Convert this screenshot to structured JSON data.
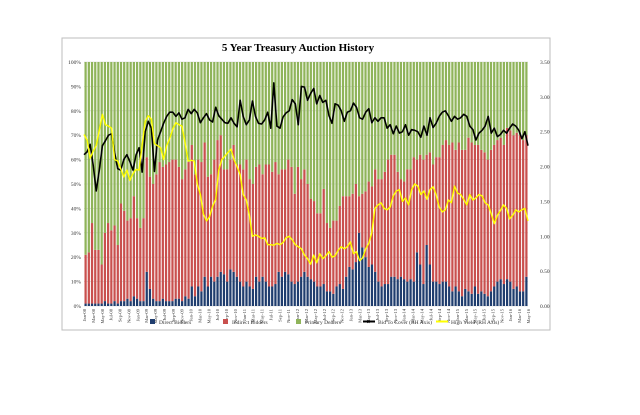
{
  "chart_data": {
    "type": "bar",
    "title": "5 Year Treasury Auction History",
    "left_axis": {
      "ylim": [
        0,
        100
      ],
      "ticks": [
        "0%",
        "10%",
        "20%",
        "30%",
        "40%",
        "50%",
        "60%",
        "70%",
        "80%",
        "90%",
        "100%"
      ]
    },
    "right_axis": {
      "ylim": [
        0,
        3.5
      ],
      "ticks": [
        "0.00",
        "0.50",
        "1.00",
        "1.50",
        "2.00",
        "2.50",
        "3.00",
        "3.50"
      ]
    },
    "grid": true,
    "legend_position": "bottom",
    "x_tick_labels": [
      "Jan-08",
      "Mar-08",
      "May-08",
      "Jul-08",
      "Sep-08",
      "Nov-08",
      "Jan-09",
      "Mar-09",
      "May-09",
      "Jul-09",
      "Sep-09",
      "Nov-09",
      "Jan-10",
      "Mar-10",
      "May-10",
      "Jul-10",
      "Sep-10",
      "Nov-10",
      "Jan-11",
      "Mar-11",
      "May-11",
      "Jul-11",
      "Sep-11",
      "Nov-11",
      "Jan-12",
      "Mar-12",
      "May-12",
      "Jul-12",
      "Sep-12",
      "Nov-12",
      "Jan-13",
      "Mar-13",
      "May-13",
      "Jul-13",
      "Sep-13",
      "Nov-13",
      "Jan-14",
      "Mar-14",
      "May-14",
      "Jul-14",
      "Sep-14",
      "Nov-14",
      "Jan-15",
      "Mar-15",
      "May-15",
      "Jul-15",
      "Sep-15",
      "Nov-15",
      "Jan-16",
      "Mar-16",
      "May-16"
    ],
    "bar_series": [
      {
        "name": "Direct Bidders",
        "color": "#1f3d6e",
        "values": [
          1,
          1,
          1,
          1,
          1,
          1,
          2,
          1,
          1,
          2,
          1,
          2,
          2,
          3,
          2,
          4,
          3,
          2,
          2,
          14,
          7,
          3,
          2,
          2,
          3,
          2,
          2,
          2,
          3,
          3,
          2,
          4,
          3,
          8,
          4,
          8,
          6,
          12,
          8,
          12,
          10,
          12,
          14,
          13,
          10,
          15,
          14,
          12,
          10,
          8,
          10,
          8,
          7,
          12,
          10,
          12,
          10,
          8,
          8,
          9,
          14,
          12,
          14,
          13,
          10,
          9,
          10,
          12,
          14,
          12,
          11,
          10,
          8,
          8,
          9,
          6,
          6,
          5,
          8,
          9,
          7,
          12,
          16,
          15,
          18,
          30,
          24,
          20,
          16,
          17,
          14,
          10,
          8,
          9,
          9,
          12,
          12,
          11,
          12,
          11,
          10,
          11,
          10,
          22,
          17,
          9,
          25,
          17,
          10,
          10,
          9,
          10,
          10,
          8,
          6,
          8,
          6,
          4,
          7,
          6,
          5,
          8,
          5,
          6,
          5,
          4,
          6,
          8,
          10,
          11,
          9,
          11,
          10,
          7,
          8,
          6,
          6,
          12
        ]
      },
      {
        "name": "Indirect Bidders",
        "color": "#c9504e",
        "values": [
          20,
          21,
          33,
          22,
          22,
          16,
          28,
          33,
          30,
          31,
          24,
          40,
          37,
          32,
          34,
          41,
          33,
          30,
          34,
          47,
          46,
          47,
          52,
          57,
          54,
          56,
          57,
          58,
          57,
          54,
          50,
          52,
          56,
          58,
          50,
          52,
          53,
          55,
          45,
          42,
          50,
          56,
          56,
          43,
          46,
          45,
          52,
          46,
          48,
          48,
          50,
          44,
          43,
          45,
          48,
          42,
          48,
          50,
          47,
          50,
          40,
          44,
          42,
          47,
          47,
          37,
          47,
          40,
          42,
          38,
          33,
          33,
          30,
          30,
          39,
          28,
          26,
          30,
          27,
          32,
          38,
          33,
          29,
          31,
          32,
          15,
          22,
          27,
          35,
          32,
          42,
          42,
          44,
          46,
          51,
          50,
          50,
          44,
          40,
          40,
          46,
          45,
          51,
          38,
          45,
          51,
          37,
          46,
          48,
          51,
          52,
          56,
          58,
          58,
          61,
          56,
          61,
          60,
          57,
          63,
          62,
          58,
          61,
          58,
          58,
          56,
          58,
          58,
          58,
          58,
          57,
          62,
          62,
          63,
          63,
          64,
          62,
          58
        ]
      },
      {
        "name": "Primary Dealers",
        "color": "#8fb45a",
        "values": [
          79,
          78,
          66,
          77,
          77,
          83,
          70,
          66,
          69,
          67,
          75,
          58,
          61,
          65,
          64,
          55,
          64,
          68,
          64,
          39,
          47,
          50,
          46,
          41,
          43,
          42,
          41,
          40,
          40,
          43,
          48,
          44,
          41,
          34,
          46,
          40,
          41,
          33,
          47,
          46,
          40,
          32,
          30,
          44,
          44,
          40,
          34,
          42,
          42,
          44,
          40,
          48,
          50,
          43,
          42,
          46,
          42,
          42,
          45,
          41,
          46,
          44,
          44,
          40,
          43,
          54,
          43,
          48,
          44,
          50,
          56,
          57,
          62,
          62,
          52,
          66,
          68,
          65,
          65,
          59,
          55,
          55,
          55,
          54,
          50,
          55,
          54,
          53,
          49,
          51,
          44,
          48,
          48,
          45,
          40,
          38,
          38,
          45,
          48,
          49,
          44,
          44,
          39,
          40,
          38,
          40,
          38,
          37,
          42,
          39,
          39,
          34,
          32,
          34,
          33,
          36,
          33,
          36,
          36,
          31,
          33,
          34,
          34,
          36,
          37,
          40,
          36,
          34,
          32,
          31,
          34,
          27,
          28,
          30,
          29,
          30,
          32,
          30
        ]
      }
    ],
    "line_series": [
      {
        "name": "Bid To Cover (RH Axis)",
        "color": "#000000",
        "axis": "right",
        "values": [
          2.17,
          2.21,
          2.32,
          2.02,
          1.65,
          1.95,
          2.3,
          2.37,
          2.45,
          2.47,
          2.2,
          1.97,
          1.95,
          2.1,
          2.17,
          2.07,
          1.95,
          2.17,
          2.27,
          1.92,
          2.5,
          2.65,
          2.55,
          1.93,
          2.38,
          2.5,
          2.62,
          2.72,
          2.78,
          2.78,
          2.72,
          2.77,
          2.68,
          2.7,
          2.82,
          2.76,
          2.82,
          2.77,
          2.63,
          2.7,
          2.76,
          2.67,
          2.64,
          2.85,
          2.73,
          2.68,
          2.63,
          2.62,
          2.7,
          2.62,
          2.57,
          2.95,
          2.72,
          2.6,
          2.67,
          2.94,
          2.72,
          2.62,
          2.61,
          2.67,
          2.78,
          2.55,
          3.2,
          2.58,
          2.55,
          2.71,
          2.77,
          2.8,
          2.96,
          2.9,
          2.6,
          3.15,
          3.14,
          2.95,
          3.05,
          3.12,
          2.9,
          3.02,
          2.92,
          2.95,
          2.73,
          2.62,
          2.9,
          2.88,
          2.8,
          2.65,
          2.78,
          2.8,
          2.91,
          2.85,
          2.7,
          2.68,
          2.78,
          2.83,
          2.63,
          2.7,
          2.65,
          2.7,
          2.7,
          2.55,
          2.6,
          2.47,
          2.58,
          2.48,
          2.5,
          2.6,
          2.45,
          2.53,
          2.52,
          2.5,
          2.42,
          2.58,
          2.45,
          2.7,
          2.56,
          2.62,
          2.72,
          2.78,
          2.8,
          2.73,
          2.65,
          2.72,
          2.68,
          2.7,
          2.75,
          2.72,
          2.58,
          2.53,
          2.38,
          2.48,
          2.52,
          2.58,
          2.72,
          2.48,
          2.55,
          2.43,
          2.46,
          2.52,
          2.48,
          2.55,
          2.61,
          2.58,
          2.52,
          2.4,
          2.5,
          2.3
        ]
      },
      {
        "name": "High Yield (RH Axis)",
        "color": "#ffff00",
        "axis": "right",
        "values": [
          2.46,
          2.38,
          2.12,
          2.22,
          2.3,
          2.52,
          2.75,
          2.6,
          2.58,
          2.55,
          2.1,
          2.08,
          1.97,
          1.85,
          1.95,
          1.8,
          1.9,
          1.96,
          1.95,
          2.32,
          2.65,
          2.73,
          2.68,
          2.33,
          2.3,
          2.27,
          2.1,
          2.3,
          2.4,
          2.54,
          2.63,
          2.6,
          2.58,
          2.35,
          2.08,
          2.09,
          2.08,
          1.75,
          1.6,
          1.32,
          1.22,
          1.28,
          1.43,
          1.53,
          1.95,
          2.1,
          2.15,
          2.2,
          2.25,
          2.1,
          2.0,
          1.88,
          1.6,
          1.52,
          1.3,
          1.0,
          1.02,
          1.0,
          0.97,
          0.98,
          0.88,
          0.88,
          0.87,
          0.9,
          0.88,
          0.91,
          0.98,
          1.0,
          0.95,
          0.88,
          0.85,
          0.82,
          0.73,
          0.68,
          0.6,
          0.73,
          0.62,
          0.75,
          0.68,
          0.72,
          0.78,
          0.7,
          0.72,
          0.8,
          0.85,
          0.82,
          0.85,
          0.92,
          0.75,
          0.78,
          0.65,
          0.69,
          0.82,
          0.9,
          1.05,
          1.4,
          1.45,
          1.48,
          1.4,
          1.38,
          1.42,
          1.58,
          1.65,
          1.67,
          1.5,
          1.55,
          1.45,
          1.67,
          1.75,
          1.72,
          1.6,
          1.65,
          1.53,
          1.67,
          1.71,
          1.6,
          1.42,
          1.35,
          1.38,
          1.52,
          1.48,
          1.72,
          1.62,
          1.6,
          1.53,
          1.45,
          1.6,
          1.52,
          1.55,
          1.6,
          1.58,
          1.48,
          1.45,
          1.32,
          1.18,
          1.3,
          1.37,
          1.45,
          1.4,
          1.25,
          1.3,
          1.38,
          1.35,
          1.38,
          1.4,
          1.22
        ]
      }
    ]
  }
}
